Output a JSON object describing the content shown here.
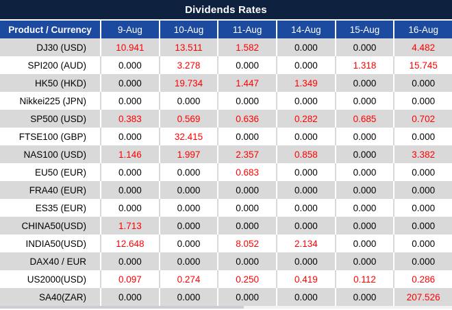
{
  "title": "Dividends Rates",
  "colors": {
    "title_bar_bg": "#0E2240",
    "header_bg": "#1B4A9F",
    "header_text": "#FFFFFF",
    "row_alt_bg": "#D9D9D9",
    "row_bg": "#FFFFFF",
    "nonzero_value_color": "#FF0000",
    "zero_value_color": "#000000"
  },
  "chart_data": {
    "type": "table",
    "title": "Dividends Rates",
    "columns": [
      "Product / Currency",
      "9-Aug",
      "10-Aug",
      "11-Aug",
      "14-Aug",
      "15-Aug",
      "16-Aug"
    ],
    "rows": [
      {
        "product": "DJ30 (USD)",
        "values": [
          "10.941",
          "13.511",
          "1.582",
          "0.000",
          "0.000",
          "4.482"
        ]
      },
      {
        "product": "SPI200 (AUD)",
        "values": [
          "0.000",
          "3.278",
          "0.000",
          "0.000",
          "1.318",
          "15.745"
        ]
      },
      {
        "product": "HK50 (HKD)",
        "values": [
          "0.000",
          "19.734",
          "1.447",
          "1.349",
          "0.000",
          "0.000"
        ]
      },
      {
        "product": "Nikkei225 (JPN)",
        "values": [
          "0.000",
          "0.000",
          "0.000",
          "0.000",
          "0.000",
          "0.000"
        ]
      },
      {
        "product": "SP500 (USD)",
        "values": [
          "0.383",
          "0.569",
          "0.636",
          "0.282",
          "0.685",
          "0.702"
        ]
      },
      {
        "product": "FTSE100 (GBP)",
        "values": [
          "0.000",
          "32.415",
          "0.000",
          "0.000",
          "0.000",
          "0.000"
        ]
      },
      {
        "product": "NAS100 (USD)",
        "values": [
          "1.146",
          "1.997",
          "2.357",
          "0.858",
          "0.000",
          "3.382"
        ]
      },
      {
        "product": "EU50 (EUR)",
        "values": [
          "0.000",
          "0.000",
          "0.683",
          "0.000",
          "0.000",
          "0.000"
        ]
      },
      {
        "product": "FRA40 (EUR)",
        "values": [
          "0.000",
          "0.000",
          "0.000",
          "0.000",
          "0.000",
          "0.000"
        ]
      },
      {
        "product": "ES35 (EUR)",
        "values": [
          "0.000",
          "0.000",
          "0.000",
          "0.000",
          "0.000",
          "0.000"
        ]
      },
      {
        "product": "CHINA50(USD)",
        "values": [
          "1.713",
          "0.000",
          "0.000",
          "0.000",
          "0.000",
          "0.000"
        ]
      },
      {
        "product": "INDIA50(USD)",
        "values": [
          "12.648",
          "0.000",
          "8.052",
          "2.134",
          "0.000",
          "0.000"
        ]
      },
      {
        "product": "DAX40 / EUR",
        "values": [
          "0.000",
          "0.000",
          "0.000",
          "0.000",
          "0.000",
          "0.000"
        ]
      },
      {
        "product": "US2000(USD)",
        "values": [
          "0.097",
          "0.274",
          "0.250",
          "0.419",
          "0.112",
          "0.286"
        ]
      },
      {
        "product": "SA40(ZAR)",
        "values": [
          "0.000",
          "0.000",
          "0.000",
          "0.000",
          "0.000",
          "207.526"
        ]
      }
    ],
    "highlight_rule": "non-zero values are shown in red, zero values in black",
    "row_striping": "odd rows gray, even rows white, starting gray"
  }
}
